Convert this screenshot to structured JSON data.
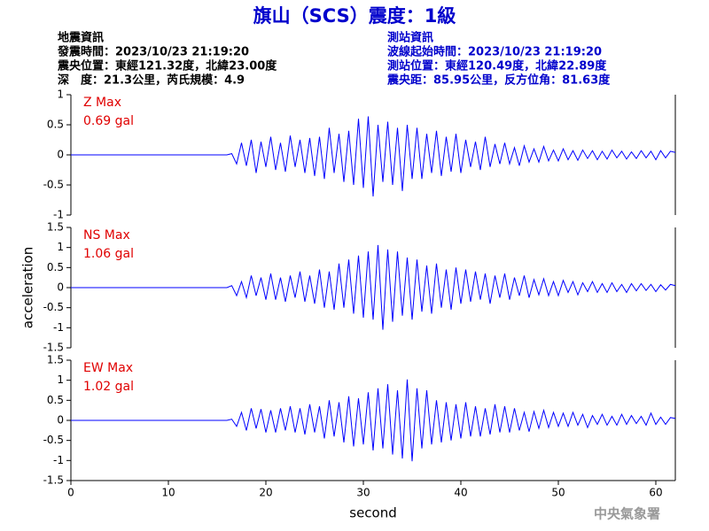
{
  "header": {
    "title": "旗山（SCS）震度：1級",
    "left": [
      "地震資訊",
      "發震時間：2023/10/23 21:19:20",
      "震央位置：東經121.32度，北緯23.00度",
      "深　度：21.3公里，芮氏規模：4.9"
    ],
    "right": [
      "測站資訊",
      "波線起始時間：2023/10/23 21:19:20",
      "測站位置：東經120.49度，北緯22.89度",
      "震央距：85.95公里，反方位角：81.63度"
    ]
  },
  "footer": "中央氣象署",
  "chart_data": [
    {
      "type": "line",
      "annotations": [
        "Z Max",
        "0.69 gal"
      ],
      "color": "#0000ff",
      "x": [
        0,
        16,
        16.5,
        17,
        17.5,
        18,
        18.5,
        19,
        19.5,
        20,
        20.5,
        21,
        21.5,
        22,
        22.5,
        23,
        23.5,
        24,
        24.5,
        25,
        25.5,
        26,
        26.5,
        27,
        27.5,
        28,
        28.5,
        29,
        29.5,
        30,
        30.5,
        31,
        31.5,
        32,
        32.5,
        33,
        33.5,
        34,
        34.5,
        35,
        35.5,
        36,
        36.5,
        37,
        37.5,
        38,
        38.5,
        39,
        39.5,
        40,
        40.5,
        41,
        41.5,
        42,
        42.5,
        43,
        43.5,
        44,
        44.5,
        45,
        45.5,
        46,
        46.5,
        47,
        47.5,
        48,
        48.5,
        49,
        49.5,
        50,
        50.5,
        51,
        51.5,
        52,
        52.5,
        53,
        53.5,
        54,
        54.5,
        55,
        55.5,
        56,
        56.5,
        57,
        57.5,
        58,
        58.5,
        59,
        59.5,
        60,
        60.5,
        61,
        61.5,
        62
      ],
      "values": [
        0,
        0,
        0.02,
        -0.15,
        0.2,
        -0.18,
        0.25,
        -0.3,
        0.22,
        -0.2,
        0.3,
        -0.25,
        0.2,
        -0.28,
        0.32,
        -0.2,
        0.25,
        -0.3,
        0.28,
        -0.35,
        0.3,
        -0.4,
        0.45,
        -0.3,
        0.35,
        -0.45,
        0.4,
        -0.5,
        0.6,
        -0.55,
        0.64,
        -0.69,
        0.5,
        -0.45,
        0.55,
        -0.5,
        0.45,
        -0.6,
        0.5,
        -0.4,
        0.45,
        -0.4,
        0.35,
        -0.3,
        0.4,
        -0.35,
        0.3,
        -0.28,
        0.35,
        -0.3,
        0.25,
        -0.2,
        0.22,
        -0.25,
        0.3,
        -0.2,
        0.18,
        -0.15,
        0.2,
        -0.15,
        0.12,
        -0.18,
        0.15,
        -0.12,
        0.1,
        -0.12,
        0.14,
        -0.1,
        0.08,
        -0.1,
        0.1,
        -0.08,
        0.07,
        -0.09,
        0.08,
        -0.06,
        0.07,
        -0.08,
        0.06,
        -0.07,
        0.08,
        -0.05,
        0.06,
        -0.07,
        0.05,
        -0.06,
        0.07,
        -0.05,
        0.06,
        -0.08,
        0.07,
        -0.05,
        0.06,
        0.04
      ],
      "xlim": [
        0,
        62
      ],
      "ylim": [
        -1,
        1
      ],
      "yticks": [
        -1,
        -0.5,
        0,
        0.5,
        1
      ]
    },
    {
      "type": "line",
      "annotations": [
        "NS Max",
        "1.06 gal"
      ],
      "color": "#0000ff",
      "y_label": "acceleration",
      "x": [
        0,
        16,
        16.5,
        17,
        17.5,
        18,
        18.5,
        19,
        19.5,
        20,
        20.5,
        21,
        21.5,
        22,
        22.5,
        23,
        23.5,
        24,
        24.5,
        25,
        25.5,
        26,
        26.5,
        27,
        27.5,
        28,
        28.5,
        29,
        29.5,
        30,
        30.5,
        31,
        31.5,
        32,
        32.5,
        33,
        33.5,
        34,
        34.5,
        35,
        35.5,
        36,
        36.5,
        37,
        37.5,
        38,
        38.5,
        39,
        39.5,
        40,
        40.5,
        41,
        41.5,
        42,
        42.5,
        43,
        43.5,
        44,
        44.5,
        45,
        45.5,
        46,
        46.5,
        47,
        47.5,
        48,
        48.5,
        49,
        49.5,
        50,
        50.5,
        51,
        51.5,
        52,
        52.5,
        53,
        53.5,
        54,
        54.5,
        55,
        55.5,
        56,
        56.5,
        57,
        57.5,
        58,
        58.5,
        59,
        59.5,
        60,
        60.5,
        61,
        61.5,
        62
      ],
      "values": [
        0,
        0,
        0.05,
        -0.2,
        0.15,
        -0.25,
        0.3,
        -0.2,
        0.25,
        -0.3,
        0.35,
        -0.3,
        0.25,
        -0.35,
        0.3,
        -0.25,
        0.4,
        -0.35,
        0.3,
        -0.4,
        0.45,
        -0.5,
        0.4,
        -0.55,
        0.6,
        -0.5,
        0.7,
        -0.65,
        0.8,
        -0.75,
        0.9,
        -0.8,
        1.06,
        -1.05,
        0.95,
        -0.85,
        0.9,
        -0.7,
        0.75,
        -0.8,
        0.7,
        -0.6,
        0.55,
        -0.65,
        0.6,
        -0.5,
        0.45,
        -0.55,
        0.5,
        -0.4,
        0.45,
        -0.35,
        0.4,
        -0.3,
        0.35,
        -0.4,
        0.3,
        -0.25,
        0.35,
        -0.3,
        0.25,
        -0.2,
        0.3,
        -0.25,
        0.2,
        -0.18,
        0.22,
        -0.2,
        0.15,
        -0.2,
        0.18,
        -0.12,
        0.15,
        -0.18,
        0.12,
        -0.1,
        0.15,
        -0.12,
        0.1,
        -0.12,
        0.12,
        -0.1,
        0.08,
        -0.12,
        0.1,
        -0.08,
        0.1,
        -0.07,
        0.08,
        -0.1,
        0.07,
        -0.06,
        0.08,
        0.05
      ],
      "xlim": [
        0,
        62
      ],
      "ylim": [
        -1.5,
        1.5
      ],
      "yticks": [
        -1.5,
        -1,
        -0.5,
        0,
        0.5,
        1,
        1.5
      ]
    },
    {
      "type": "line",
      "annotations": [
        "EW Max",
        "1.02 gal"
      ],
      "color": "#0000ff",
      "x_label": "second",
      "x": [
        0,
        16,
        16.5,
        17,
        17.5,
        18,
        18.5,
        19,
        19.5,
        20,
        20.5,
        21,
        21.5,
        22,
        22.5,
        23,
        23.5,
        24,
        24.5,
        25,
        25.5,
        26,
        26.5,
        27,
        27.5,
        28,
        28.5,
        29,
        29.5,
        30,
        30.5,
        31,
        31.5,
        32,
        32.5,
        33,
        33.5,
        34,
        34.5,
        35,
        35.5,
        36,
        36.5,
        37,
        37.5,
        38,
        38.5,
        39,
        39.5,
        40,
        40.5,
        41,
        41.5,
        42,
        42.5,
        43,
        43.5,
        44,
        44.5,
        45,
        45.5,
        46,
        46.5,
        47,
        47.5,
        48,
        48.5,
        49,
        49.5,
        50,
        50.5,
        51,
        51.5,
        52,
        52.5,
        53,
        53.5,
        54,
        54.5,
        55,
        55.5,
        56,
        56.5,
        57,
        57.5,
        58,
        58.5,
        59,
        59.5,
        60,
        60.5,
        61,
        61.5,
        62
      ],
      "values": [
        0,
        0,
        0.03,
        -0.15,
        0.2,
        -0.25,
        0.3,
        -0.2,
        0.28,
        -0.3,
        0.25,
        -0.3,
        0.3,
        -0.25,
        0.35,
        -0.3,
        0.3,
        -0.35,
        0.4,
        -0.3,
        0.35,
        -0.45,
        0.5,
        -0.4,
        0.45,
        -0.55,
        0.6,
        -0.65,
        0.55,
        -0.6,
        0.7,
        -0.75,
        0.8,
        -0.7,
        0.9,
        -0.85,
        0.75,
        -0.95,
        1.02,
        -1.02,
        0.8,
        -0.7,
        0.75,
        -0.6,
        0.5,
        -0.55,
        0.45,
        -0.5,
        0.4,
        -0.45,
        0.45,
        -0.4,
        0.35,
        -0.4,
        0.3,
        -0.35,
        0.4,
        -0.3,
        0.35,
        -0.3,
        0.3,
        -0.25,
        0.2,
        -0.28,
        0.22,
        -0.2,
        0.25,
        -0.18,
        0.2,
        -0.15,
        0.18,
        -0.15,
        0.2,
        -0.12,
        0.15,
        -0.18,
        0.12,
        -0.1,
        0.15,
        -0.12,
        0.1,
        -0.12,
        0.15,
        -0.1,
        0.12,
        -0.08,
        0.1,
        -0.12,
        0.18,
        -0.1,
        0.08,
        -0.1,
        0.07,
        0.05
      ],
      "xlim": [
        0,
        62
      ],
      "ylim": [
        -1.5,
        1.5
      ],
      "yticks": [
        -1.5,
        -1,
        -0.5,
        0,
        0.5,
        1,
        1.5
      ],
      "xticks": [
        0,
        10,
        20,
        30,
        40,
        50,
        60
      ]
    }
  ]
}
